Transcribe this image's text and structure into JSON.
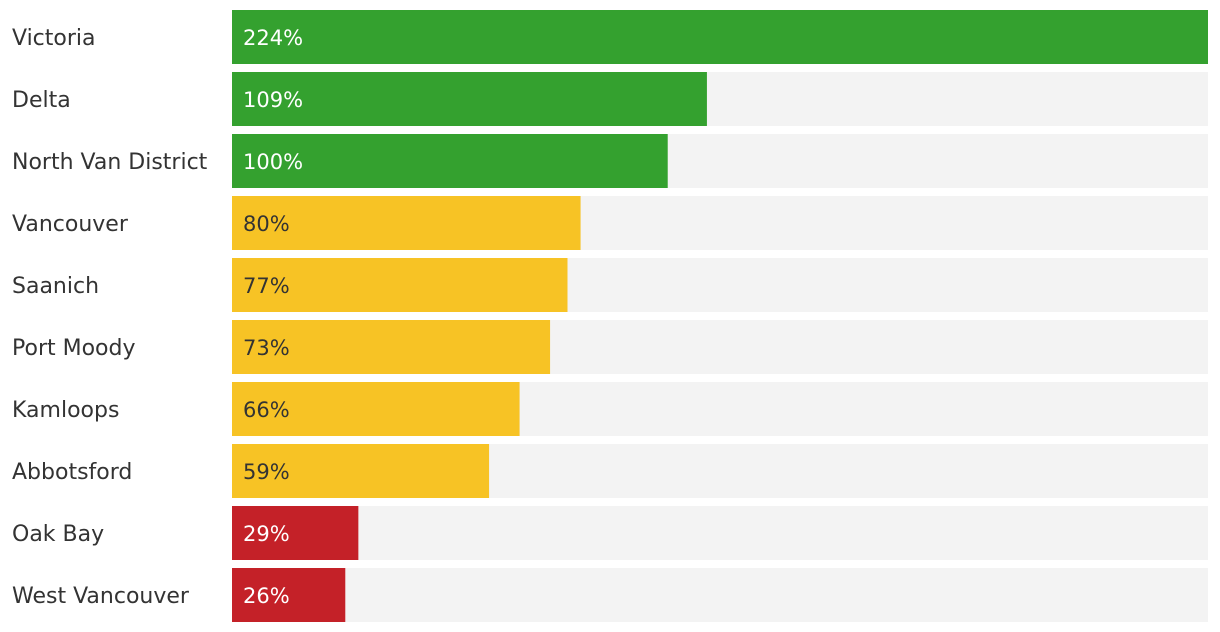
{
  "chart_data": {
    "type": "bar",
    "orientation": "horizontal",
    "categories": [
      "Victoria",
      "Delta",
      "North Van District",
      "Vancouver",
      "Saanich",
      "Port Moody",
      "Kamloops",
      "Abbotsford",
      "Oak Bay",
      "West Vancouver"
    ],
    "values": [
      224,
      109,
      100,
      80,
      77,
      73,
      66,
      59,
      29,
      26
    ],
    "value_labels": [
      "224%",
      "109%",
      "100%",
      "80%",
      "77%",
      "73%",
      "66%",
      "59%",
      "29%",
      "26%"
    ],
    "unit": "%",
    "xlim": [
      0,
      224
    ],
    "grid": false,
    "legend": "none",
    "colors": {
      "high": "#34a12f",
      "mid": "#f7c325",
      "low": "#c42128",
      "track": "#f3f3f3",
      "label_on_dark": "#ffffff",
      "label_on_light": "#333333"
    },
    "color_rule": {
      "high_min": 100,
      "low_max": 30
    }
  }
}
